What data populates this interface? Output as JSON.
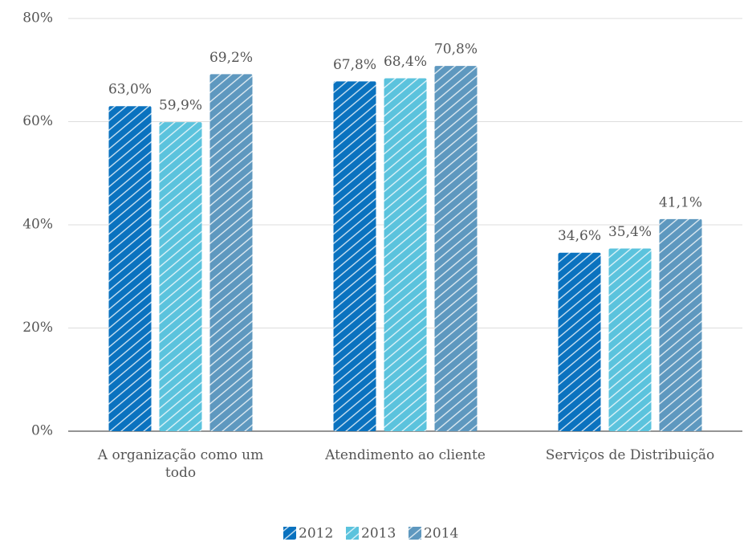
{
  "chart_data": {
    "type": "bar",
    "categories": [
      "A organização como um todo",
      "Atendimento ao cliente",
      "Serviços de Distribuição"
    ],
    "series": [
      {
        "name": "2012",
        "color": "#0a72bf",
        "values": [
          63.0,
          67.8,
          34.6
        ],
        "value_labels": [
          "63,0%",
          "67,8%",
          "34,6%"
        ]
      },
      {
        "name": "2013",
        "color": "#5bc3dd",
        "values": [
          59.9,
          68.4,
          35.4
        ],
        "value_labels": [
          "59,9%",
          "68,4%",
          "35,4%"
        ]
      },
      {
        "name": "2014",
        "color": "#5e98bf",
        "values": [
          69.2,
          70.8,
          41.1
        ],
        "value_labels": [
          "69,2%",
          "70,8%",
          "41,1%"
        ]
      }
    ],
    "ylim": [
      0,
      80
    ],
    "yticks": [
      {
        "value": 0,
        "label": "0%"
      },
      {
        "value": 20,
        "label": "20%"
      },
      {
        "value": 40,
        "label": "40%"
      },
      {
        "value": 60,
        "label": "60%"
      },
      {
        "value": 80,
        "label": "80%"
      }
    ],
    "grid": true,
    "legend": "bottom"
  }
}
